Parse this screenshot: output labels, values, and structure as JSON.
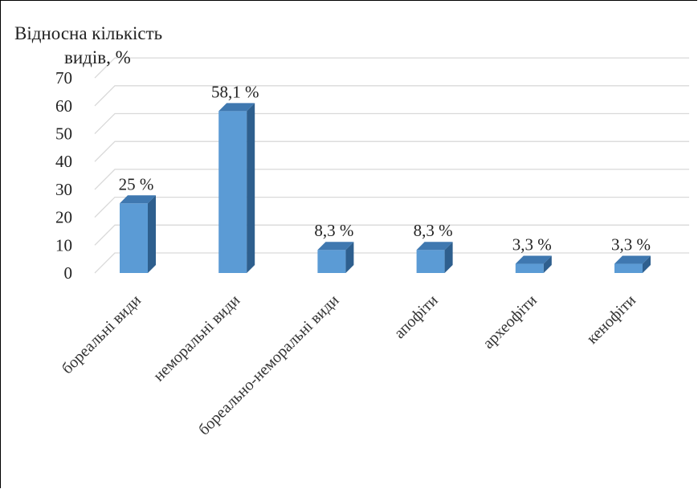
{
  "chart_data": {
    "type": "bar",
    "title": "",
    "ylabel_line1": "Відносна кількість",
    "ylabel_line2": "видів, %",
    "categories": [
      "бореальні види",
      "неморальні види",
      "бореально-неморальні види",
      "апофіти",
      "археофіти",
      "кенофіти"
    ],
    "values": [
      25,
      58.1,
      8.3,
      8.3,
      3.3,
      3.3
    ],
    "data_labels": [
      "25 %",
      "58,1 %",
      "8,3 %",
      "8,3 %",
      "3,3 %",
      "3,3 %"
    ],
    "yticks": [
      0,
      10,
      20,
      30,
      40,
      50,
      60,
      70
    ],
    "ylim": [
      0,
      70
    ],
    "grid": true,
    "style": "3d-column",
    "colors": {
      "front": "#5b9bd5",
      "side": "#2e5f8e",
      "top": "#3f78b0",
      "grid": "#d9d9d9"
    }
  }
}
